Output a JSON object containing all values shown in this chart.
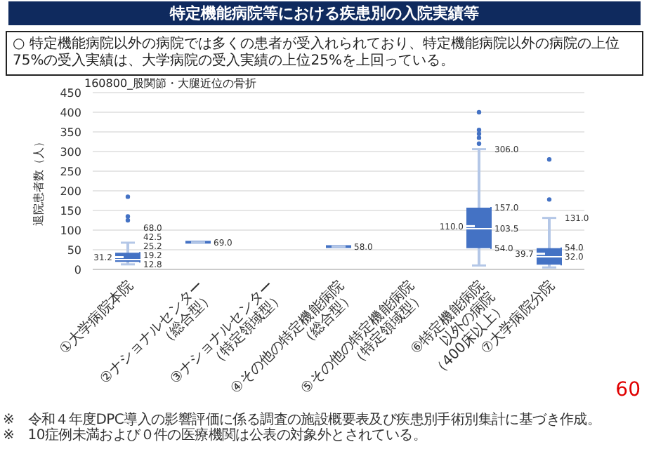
{
  "chart_data": {
    "type": "box",
    "title": "特定機能病院等における疾患別の入院実績等",
    "subtitle": "160800_股関節・大腿近位の骨折",
    "ylabel": "退院患者数（人）",
    "annotations": [
      "○ 特定機能病院以外の病院では多くの患者が受入れられており、特定機能病院以外の病院の上位75%の受入実績は、大学病院の受入実績の上位25%を上回っている。",
      "※　令和４年度DPC導入の影響評価に係る調査の施設概要表及び疾患別手術別集計に基づき作成。",
      "※　10症例未満および０件の医療機関は公表の対象外とされている。",
      "60"
    ],
    "categories": [
      "①大学病院本院",
      "②ナショナルセンター\n（総合型）",
      "③ナショナルセンター\n（特定領域型）",
      "④その他の特定機能病院\n（総合型）",
      "⑤その他の特定機能病院\n（特定領域型）",
      "⑥特定機能病院\n以外の病院\n（400床以上）",
      "⑦大学病院分院"
    ],
    "boxes": [
      {
        "low": 12.8,
        "q1": 19.2,
        "median": 25.2,
        "q3": 42.5,
        "high": 68.0,
        "mean": 31.2,
        "outliers": [
          185,
          135,
          125
        ]
      },
      {
        "low": 69.0,
        "q1": 69.0,
        "median": 69.0,
        "q3": 69.0,
        "high": 69.0
      },
      null,
      {
        "low": 58.0,
        "q1": 58.0,
        "median": 58.0,
        "q3": 58.0,
        "high": 58.0
      },
      null,
      {
        "low": 10,
        "q1": 54.0,
        "median": 103.5,
        "q3": 157.0,
        "high": 306.0,
        "mean": 110.0,
        "outliers": [
          400,
          355,
          345,
          335,
          320
        ]
      },
      {
        "low": 5,
        "q1": 12,
        "median": 32.0,
        "q3": 54.0,
        "high": 131.0,
        "mean": 39.7,
        "outliers": [
          280,
          178
        ]
      }
    ],
    "value_labels": [
      {
        "low": "12.8",
        "q1": "19.2",
        "median": "25.2",
        "q3": "42.5",
        "high": "68.0",
        "mean": "31.2"
      },
      {
        "median": "69.0"
      },
      null,
      {
        "median": "58.0"
      },
      null,
      {
        "q1": "54.0",
        "median": "103.5",
        "q3": "157.0",
        "high": "306.0",
        "mean": "110.0"
      },
      {
        "median": "32.0",
        "q3": "54.0",
        "high": "131.0",
        "mean": "39.7"
      }
    ],
    "color": "#4472c4",
    "ylim": [
      0,
      450
    ],
    "yticks": [
      0,
      50,
      100,
      150,
      200,
      250,
      300,
      350,
      400,
      450
    ],
    "grid": "y"
  }
}
